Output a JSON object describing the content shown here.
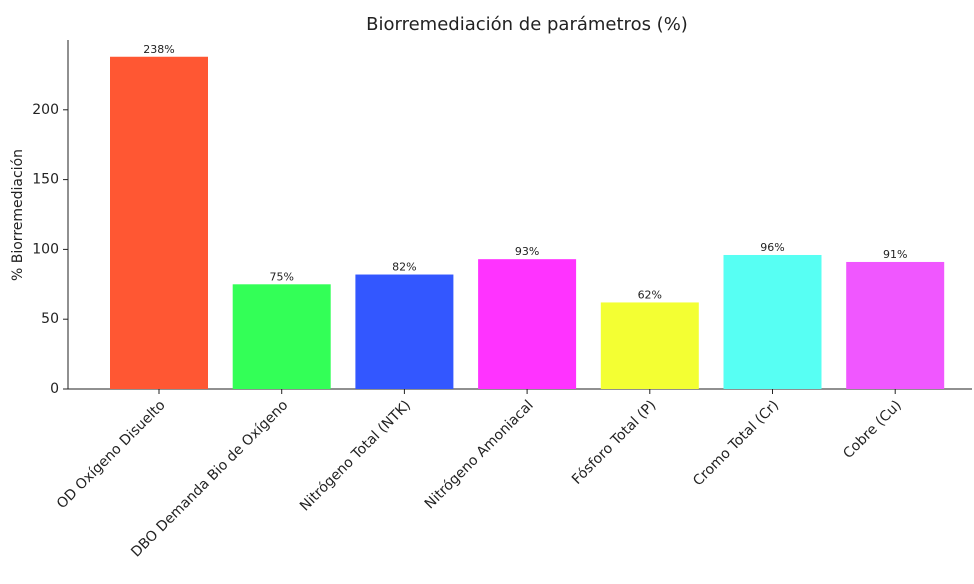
{
  "chart_data": {
    "type": "bar",
    "title": "Biorremediación de parámetros (%)",
    "ylabel": "% Biorremediación",
    "categories": [
      "OD Oxígeno Disuelto",
      "DBO Demanda Bio de Oxígeno",
      "Nitrógeno Total (NTK)",
      "Nitrógeno Amoniacal",
      "Fósforo Total (P)",
      "Cromo Total (Cr)",
      "Cobre (Cu)"
    ],
    "values": [
      238,
      75,
      82,
      93,
      62,
      96,
      91
    ],
    "value_labels": [
      "238%",
      "75%",
      "82%",
      "93%",
      "62%",
      "96%",
      "91%"
    ],
    "colors": [
      "#ff5733",
      "#33ff57",
      "#3357ff",
      "#ff33ff",
      "#f3ff33",
      "#57fff3",
      "#f057ff"
    ],
    "ylim": [
      0,
      250
    ],
    "yticks": [
      0,
      50,
      100,
      150,
      200
    ],
    "grid": false
  }
}
